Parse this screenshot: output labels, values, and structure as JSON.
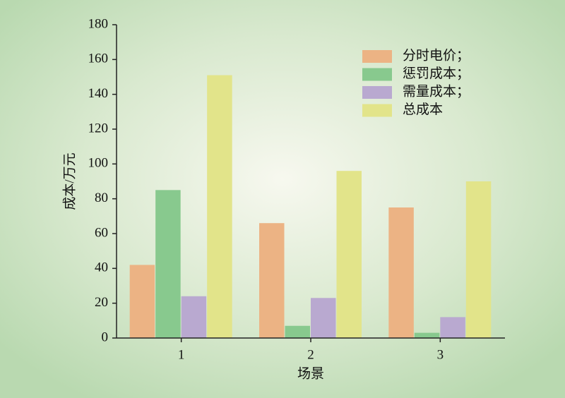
{
  "chart_data": {
    "type": "bar",
    "x_label": "场景",
    "y_label": "成本/万元",
    "categories": [
      "1",
      "2",
      "3"
    ],
    "series": [
      {
        "name": "分时电价；",
        "color": "#ecb384",
        "values": [
          42,
          66,
          75
        ]
      },
      {
        "name": "惩罚成本；",
        "color": "#88c98e",
        "values": [
          85,
          7,
          3
        ]
      },
      {
        "name": "需量成本；",
        "color": "#b9a9d0",
        "values": [
          24,
          23,
          12
        ]
      },
      {
        "name": "总成本",
        "color": "#e2e48a",
        "values": [
          151,
          96,
          90
        ]
      }
    ],
    "ylim": [
      0,
      180
    ],
    "yticks": [
      0,
      20,
      40,
      60,
      80,
      100,
      120,
      140,
      160,
      180
    ],
    "grid": false,
    "legend": "upper right"
  }
}
